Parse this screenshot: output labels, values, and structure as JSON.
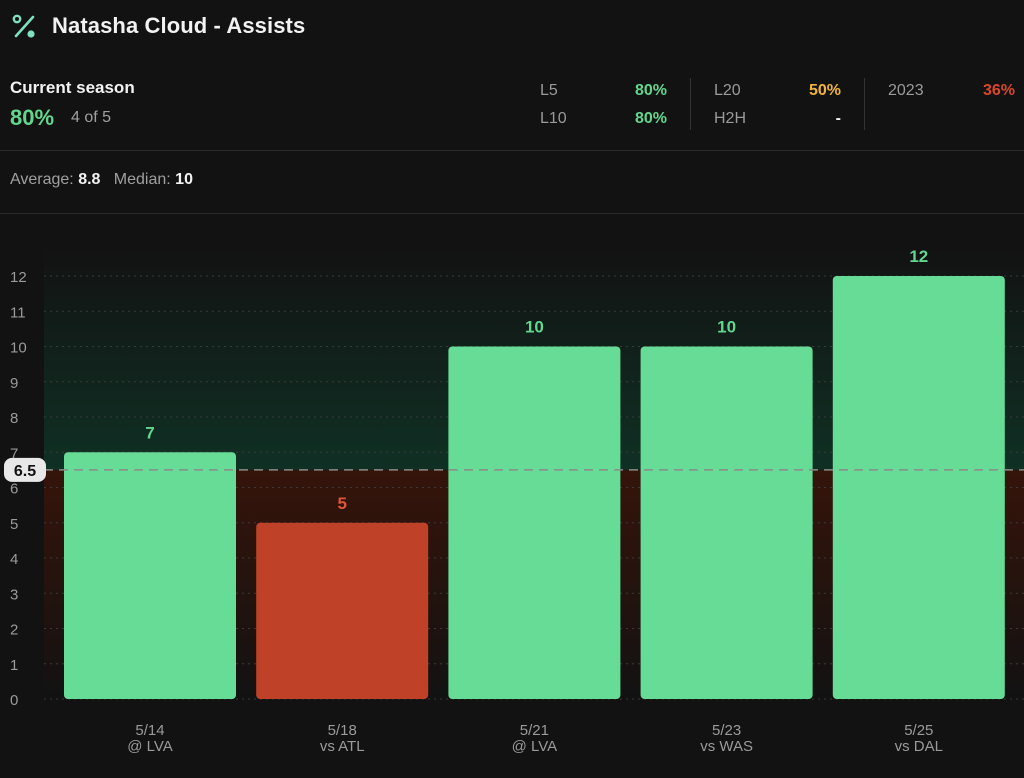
{
  "header": {
    "title": "Natasha Cloud - Assists",
    "icon": "percent-icon"
  },
  "season": {
    "label": "Current season",
    "pct": "80%",
    "count": "4 of 5"
  },
  "splits": [
    {
      "key": "L5",
      "value": "80%",
      "color": "#63d68e"
    },
    {
      "key": "L10",
      "value": "80%",
      "color": "#63d68e"
    },
    {
      "key": "L20",
      "value": "50%",
      "color": "#f0b43c"
    },
    {
      "key": "H2H",
      "value": "-",
      "color": "#f2f2f2"
    },
    {
      "key": "2023",
      "value": "36%",
      "color": "#d9472b"
    }
  ],
  "summary": {
    "average_label": "Average:",
    "average_value": "8.8",
    "median_label": "Median:",
    "median_value": "10"
  },
  "colors": {
    "over": "#67dc96",
    "under": "#bf4128",
    "over_label": "#63d68e",
    "under_label": "#e0553a"
  },
  "chart_data": {
    "type": "bar",
    "line": 6.5,
    "line_label": "6.5",
    "ylim": [
      0,
      12
    ],
    "yticks": [
      "0",
      "1",
      "2",
      "3",
      "4",
      "5",
      "6",
      "7",
      "8",
      "9",
      "10",
      "11",
      "12"
    ],
    "categories": [
      {
        "date": "5/14",
        "opp": "@ LVA"
      },
      {
        "date": "5/18",
        "opp": "vs ATL"
      },
      {
        "date": "5/21",
        "opp": "@ LVA"
      },
      {
        "date": "5/23",
        "opp": "vs WAS"
      },
      {
        "date": "5/25",
        "opp": "vs DAL"
      }
    ],
    "values": [
      7,
      5,
      10,
      10,
      12
    ],
    "value_labels": [
      "7",
      "5",
      "10",
      "10",
      "12"
    ]
  }
}
